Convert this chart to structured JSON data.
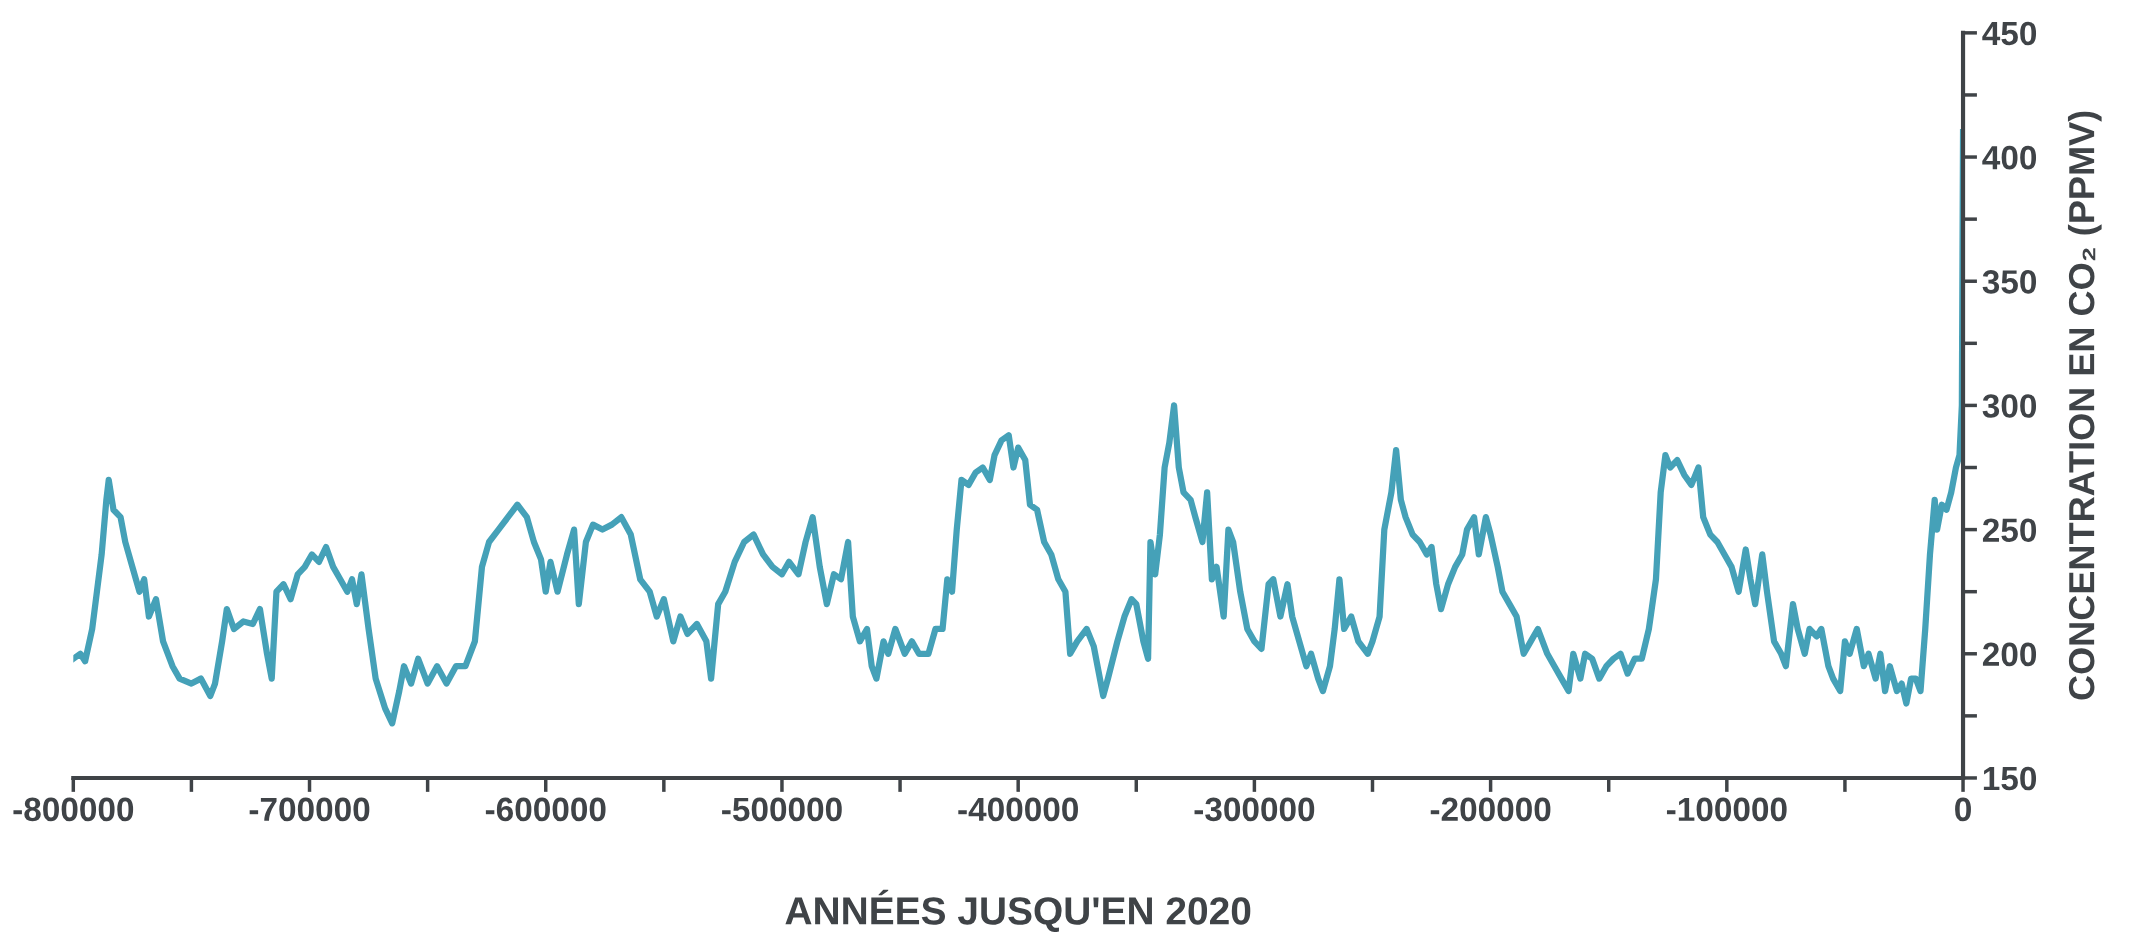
{
  "chart_data": {
    "type": "line",
    "xlabel": "ANNÉES JUSQU'EN 2020",
    "ylabel": "CONCENTRATION EN CO₂ (PPMV)",
    "x": [
      -800000,
      -797000,
      -795000,
      -792000,
      -790000,
      -788000,
      -786000,
      -785000,
      -783000,
      -780000,
      -778000,
      -775000,
      -772000,
      -770000,
      -768000,
      -765000,
      -762000,
      -758000,
      -755000,
      -750000,
      -746000,
      -742000,
      -740000,
      -737000,
      -735000,
      -732000,
      -728000,
      -724000,
      -721000,
      -718000,
      -716000,
      -714000,
      -711000,
      -708000,
      -705000,
      -702000,
      -699000,
      -696000,
      -693000,
      -690000,
      -687000,
      -684000,
      -682000,
      -680000,
      -678000,
      -675000,
      -672000,
      -668000,
      -665000,
      -662000,
      -660000,
      -657000,
      -654000,
      -650000,
      -646000,
      -642000,
      -638000,
      -634000,
      -630000,
      -627000,
      -624000,
      -620000,
      -616000,
      -612000,
      -608000,
      -605000,
      -602000,
      -600000,
      -598000,
      -595000,
      -591000,
      -588000,
      -586000,
      -583000,
      -580000,
      -576000,
      -572000,
      -568000,
      -564000,
      -560000,
      -556000,
      -553000,
      -550000,
      -546000,
      -543000,
      -540000,
      -536000,
      -532000,
      -530000,
      -527000,
      -524000,
      -520000,
      -516000,
      -512000,
      -508000,
      -504000,
      -500000,
      -497000,
      -493000,
      -490000,
      -487000,
      -484000,
      -481000,
      -478000,
      -475000,
      -472000,
      -470000,
      -467000,
      -464000,
      -462000,
      -460000,
      -457000,
      -455000,
      -452000,
      -448000,
      -445000,
      -442000,
      -438000,
      -435000,
      -432000,
      -430000,
      -428000,
      -426000,
      -424000,
      -421000,
      -418000,
      -415000,
      -412000,
      -410000,
      -407000,
      -404000,
      -402000,
      -400000,
      -397000,
      -395000,
      -392000,
      -389000,
      -386000,
      -383000,
      -380000,
      -378000,
      -375000,
      -371000,
      -368000,
      -366000,
      -364000,
      -362000,
      -358000,
      -355000,
      -352000,
      -350000,
      -347000,
      -345000,
      -344000,
      -342000,
      -340000,
      -338000,
      -336000,
      -334000,
      -332000,
      -330000,
      -327000,
      -325000,
      -322000,
      -320000,
      -318000,
      -316000,
      -313000,
      -311000,
      -309000,
      -306000,
      -303000,
      -300000,
      -297000,
      -294000,
      -292000,
      -289000,
      -286000,
      -284000,
      -281000,
      -278000,
      -276000,
      -273000,
      -271000,
      -268000,
      -266000,
      -264000,
      -262000,
      -259000,
      -256000,
      -252000,
      -250000,
      -247000,
      -245000,
      -242000,
      -240000,
      -238000,
      -236000,
      -233000,
      -230000,
      -227000,
      -225000,
      -223000,
      -221000,
      -218000,
      -215000,
      -212000,
      -210000,
      -207000,
      -205000,
      -202000,
      -200000,
      -197000,
      -195000,
      -192000,
      -189000,
      -186000,
      -183000,
      -180000,
      -176000,
      -173000,
      -170000,
      -167000,
      -165000,
      -162000,
      -160000,
      -157000,
      -154000,
      -151000,
      -148000,
      -145000,
      -142000,
      -139000,
      -136000,
      -133000,
      -130000,
      -128000,
      -126000,
      -124000,
      -121000,
      -118000,
      -115000,
      -112000,
      -110000,
      -107000,
      -104000,
      -101000,
      -98000,
      -95000,
      -92000,
      -90000,
      -88000,
      -85000,
      -83000,
      -80000,
      -77000,
      -75000,
      -72000,
      -70000,
      -67000,
      -65000,
      -62000,
      -60000,
      -57000,
      -55000,
      -52000,
      -50000,
      -48000,
      -45000,
      -42000,
      -40000,
      -37000,
      -35000,
      -33000,
      -31000,
      -28000,
      -26000,
      -24000,
      -22000,
      -20000,
      -18000,
      -16000,
      -14000,
      -12000,
      -11000,
      -9000,
      -7000,
      -5000,
      -3000,
      -1500,
      -500,
      0
    ],
    "series": [
      {
        "color": "#45a1b8",
        "values": [
          198,
          200,
          197,
          210,
          225,
          240,
          262,
          270,
          258,
          255,
          245,
          235,
          225,
          230,
          215,
          222,
          205,
          195,
          190,
          188,
          190,
          183,
          188,
          205,
          218,
          210,
          213,
          212,
          218,
          200,
          190,
          225,
          228,
          222,
          232,
          235,
          240,
          237,
          243,
          235,
          230,
          225,
          230,
          220,
          232,
          210,
          190,
          178,
          172,
          185,
          195,
          188,
          198,
          188,
          195,
          188,
          195,
          195,
          205,
          235,
          245,
          250,
          255,
          260,
          255,
          245,
          238,
          225,
          237,
          225,
          240,
          250,
          220,
          245,
          252,
          250,
          252,
          255,
          248,
          230,
          225,
          215,
          222,
          205,
          215,
          208,
          212,
          205,
          190,
          220,
          225,
          237,
          245,
          248,
          240,
          235,
          232,
          237,
          232,
          245,
          255,
          235,
          220,
          232,
          230,
          245,
          215,
          205,
          210,
          195,
          190,
          205,
          200,
          210,
          200,
          205,
          200,
          200,
          210,
          210,
          230,
          225,
          250,
          270,
          268,
          273,
          275,
          270,
          280,
          286,
          288,
          275,
          283,
          278,
          260,
          258,
          245,
          240,
          230,
          225,
          200,
          205,
          210,
          203,
          193,
          183,
          190,
          205,
          215,
          222,
          220,
          205,
          198,
          245,
          232,
          248,
          275,
          285,
          300,
          275,
          265,
          262,
          255,
          245,
          265,
          230,
          235,
          215,
          250,
          245,
          225,
          210,
          205,
          202,
          228,
          230,
          215,
          228,
          215,
          205,
          195,
          200,
          190,
          185,
          195,
          210,
          230,
          210,
          215,
          205,
          200,
          205,
          215,
          250,
          265,
          282,
          262,
          255,
          248,
          245,
          240,
          243,
          228,
          218,
          228,
          235,
          240,
          250,
          255,
          240,
          255,
          248,
          235,
          225,
          220,
          215,
          200,
          205,
          210,
          200,
          195,
          190,
          185,
          200,
          190,
          200,
          198,
          190,
          195,
          198,
          200,
          192,
          198,
          198,
          210,
          230,
          265,
          280,
          275,
          278,
          272,
          268,
          275,
          255,
          248,
          245,
          240,
          235,
          225,
          242,
          230,
          220,
          240,
          225,
          205,
          200,
          195,
          220,
          210,
          200,
          210,
          207,
          210,
          195,
          190,
          185,
          205,
          200,
          210,
          195,
          200,
          190,
          200,
          185,
          195,
          185,
          188,
          180,
          190,
          190,
          185,
          210,
          240,
          262,
          250,
          260,
          258,
          265,
          275,
          280,
          300,
          410
        ]
      }
    ],
    "xlim": [
      -800000,
      0
    ],
    "xticks": [
      -800000,
      {
        "value": -750000,
        "label": null
      },
      -700000,
      {
        "value": -650000,
        "label": null
      },
      -600000,
      {
        "value": -550000,
        "label": null
      },
      -500000,
      {
        "value": -450000,
        "label": null
      },
      -400000,
      {
        "value": -350000,
        "label": null
      },
      -300000,
      {
        "value": -250000,
        "label": null
      },
      -200000,
      {
        "value": -150000,
        "label": null
      },
      -100000,
      {
        "value": -50000,
        "label": null
      },
      0
    ],
    "ylim": [
      150,
      450
    ],
    "yticks": [
      150,
      {
        "value": 175,
        "label": null
      },
      200,
      {
        "value": 225,
        "label": null
      },
      250,
      {
        "value": 275,
        "label": null
      },
      300,
      {
        "value": 325,
        "label": null
      },
      350,
      {
        "value": 375,
        "label": null
      },
      400,
      {
        "value": 425,
        "label": null
      },
      450
    ],
    "grid": false
  }
}
